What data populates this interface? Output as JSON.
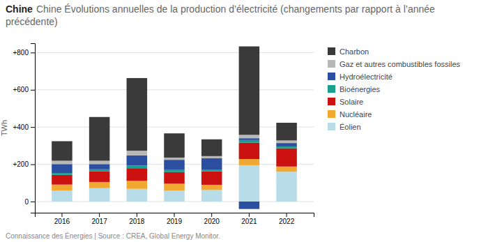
{
  "chart_data": {
    "type": "bar",
    "stacked": true,
    "title": "Chine",
    "subtitle": "Chine Évolutions annuelles de la production d’électricité (changements par rapport à l’année précédente)",
    "y_label": "TWh",
    "annotations": [
      "Connaissance des Énergies | Source : CREA, Global Energy Monitor."
    ],
    "categories": [
      "2016",
      "2017",
      "2018",
      "2019",
      "2020",
      "2021",
      "2022"
    ],
    "series": [
      {
        "name": "Charbon",
        "color": "#3a3a3a",
        "values": [
          105,
          235,
          390,
          130,
          90,
          475,
          95
        ]
      },
      {
        "name": "Gaz et autres combustibles fossiles",
        "color": "#b8b8b8",
        "values": [
          18,
          18,
          25,
          12,
          12,
          18,
          14
        ]
      },
      {
        "name": "Hydroélectricité",
        "color": "#2b4ea0",
        "values": [
          48,
          28,
          55,
          52,
          60,
          10,
          18
        ],
        "negative_values": [
          null,
          null,
          null,
          null,
          null,
          -40,
          null
        ]
      },
      {
        "name": "Bioénergies",
        "color": "#1a9e8e",
        "values": [
          10,
          10,
          14,
          14,
          10,
          14,
          10
        ]
      },
      {
        "name": "Solaire",
        "color": "#cc1111",
        "values": [
          52,
          58,
          68,
          62,
          72,
          88,
          98
        ]
      },
      {
        "name": "Nucléaire",
        "color": "#f0a830",
        "values": [
          33,
          33,
          43,
          38,
          28,
          33,
          28
        ]
      },
      {
        "name": "Éolien",
        "color": "#b8dde8",
        "values": [
          58,
          72,
          68,
          58,
          62,
          195,
          160
        ]
      }
    ],
    "ylim": [
      -60,
      850
    ],
    "yticks": [
      0,
      {
        "value": 200,
        "label": "+200"
      },
      {
        "value": 400,
        "label": "+400"
      },
      {
        "value": 600,
        "label": "+600"
      },
      {
        "value": 800,
        "label": "+800"
      }
    ],
    "grid": true,
    "legend": "right"
  }
}
